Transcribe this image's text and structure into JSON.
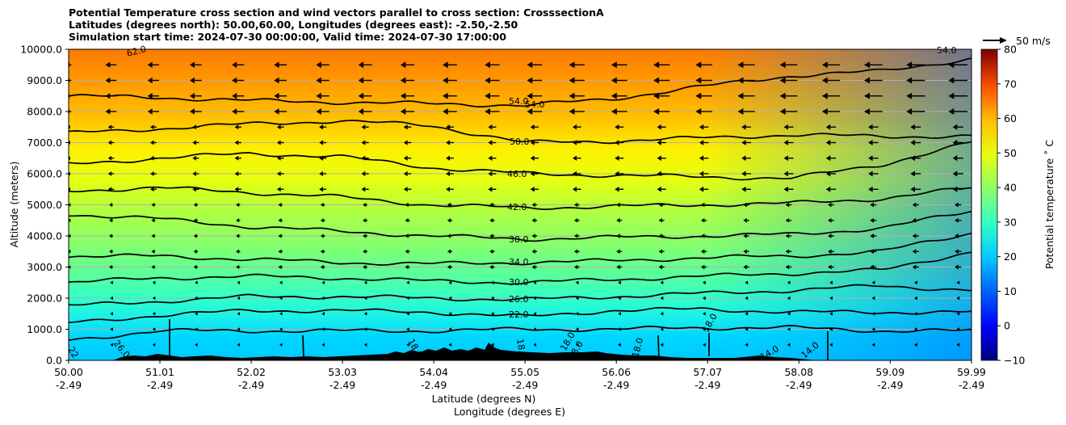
{
  "title": {
    "line1": "Potential Temperature cross section and wind vectors parallel to cross section: CrosssectionA",
    "line2": "Latitudes (degrees north): 50.00,60.00, Longitudes (degrees east): -2.50,-2.50",
    "line3": "Simulation start time: 2024-07-30 00:00:00, Valid time: 2024-07-30 17:00:00"
  },
  "chart_data": {
    "type": "contourf",
    "title": "Potential Temperature cross section and wind vectors parallel to cross section: CrosssectionA",
    "ylabel": "Altitude (meters)",
    "xlabel_1": "Latitude (degrees N)",
    "xlabel_2": "Longitude (degrees E)",
    "ylim": [
      0,
      10000
    ],
    "xlim": [
      50.0,
      59.99
    ],
    "y_ticks": [
      "0.0",
      "1000.0",
      "2000.0",
      "3000.0",
      "4000.0",
      "5000.0",
      "6000.0",
      "7000.0",
      "8000.0",
      "9000.0",
      "10000.0"
    ],
    "x_ticks": [
      {
        "lat": "50.00",
        "lon": "-2.49"
      },
      {
        "lat": "51.01",
        "lon": "-2.49"
      },
      {
        "lat": "52.02",
        "lon": "-2.49"
      },
      {
        "lat": "53.03",
        "lon": "-2.49"
      },
      {
        "lat": "54.04",
        "lon": "-2.49"
      },
      {
        "lat": "55.05",
        "lon": "-2.49"
      },
      {
        "lat": "56.06",
        "lon": "-2.49"
      },
      {
        "lat": "57.07",
        "lon": "-2.49"
      },
      {
        "lat": "58.08",
        "lon": "-2.49"
      },
      {
        "lat": "59.09",
        "lon": "-2.49"
      },
      {
        "lat": "59.99",
        "lon": "-2.49"
      }
    ],
    "grid": "horizontal",
    "colorbar": {
      "label": "Potential temperature $^\\circ$C",
      "label_display": "Potential temperature ˚ C",
      "range": [
        -10,
        80
      ],
      "ticks": [
        "−10",
        "0",
        "10",
        "20",
        "30",
        "40",
        "50",
        "60",
        "70",
        "80"
      ]
    },
    "quiver_key": {
      "label": "50 m/s"
    },
    "contour_labels": [
      {
        "value": "54.0"
      },
      {
        "value": "50.0"
      },
      {
        "value": "46.0"
      },
      {
        "value": "42.0"
      },
      {
        "value": "38.0"
      },
      {
        "value": "34.0"
      },
      {
        "value": "30.0"
      },
      {
        "value": "26.0"
      },
      {
        "value": "22.0"
      },
      {
        "value": "18.0"
      },
      {
        "value": "14.0"
      },
      {
        "value": "62.0"
      }
    ],
    "contour_label_texts": {
      "c54a": "54.0",
      "c54b": "54.0",
      "c54c": "54.0",
      "c62": "62.0",
      "c50": "50.0",
      "c46": "46.0",
      "c42": "42.0",
      "c38": "38.0",
      "c34": "34.0",
      "c30": "30.0",
      "c26": "26.0",
      "c22": "22.0",
      "c18a": "18.0",
      "c18b": "18.0",
      "c18c": "18.0",
      "c18d": "18.0",
      "c18e": "18.0",
      "c26b": "26.0",
      "c22b": "22",
      "c14a": "14.0",
      "c14b": "14.0",
      "c18f": "18.0"
    },
    "isotherms": [
      {
        "value": 54,
        "profile": [
          [
            50.0,
            8500
          ],
          [
            51.0,
            8450
          ],
          [
            52.0,
            8350
          ],
          [
            53.0,
            8300
          ],
          [
            54.0,
            8250
          ],
          [
            55.05,
            8200
          ],
          [
            56.0,
            8400
          ],
          [
            57.0,
            8800
          ],
          [
            58.0,
            9150
          ],
          [
            59.0,
            9300
          ],
          [
            59.99,
            9700
          ]
        ]
      },
      {
        "value": 50,
        "profile": [
          [
            50.0,
            7300
          ],
          [
            51.0,
            7450
          ],
          [
            52.0,
            7600
          ],
          [
            53.0,
            7700
          ],
          [
            54.0,
            7550
          ],
          [
            55.05,
            7000
          ],
          [
            56.0,
            7050
          ],
          [
            57.0,
            7150
          ],
          [
            58.0,
            7250
          ],
          [
            59.0,
            7200
          ],
          [
            59.99,
            7200
          ]
        ]
      },
      {
        "value": 46,
        "profile": [
          [
            50.0,
            6300
          ],
          [
            51.0,
            6500
          ],
          [
            52.0,
            6650
          ],
          [
            53.0,
            6550
          ],
          [
            54.0,
            6200
          ],
          [
            55.05,
            6000
          ],
          [
            56.0,
            5950
          ],
          [
            57.0,
            5900
          ],
          [
            58.0,
            5850
          ],
          [
            59.0,
            6300
          ],
          [
            59.99,
            7000
          ]
        ]
      },
      {
        "value": 42,
        "profile": [
          [
            50.0,
            5450
          ],
          [
            51.0,
            5550
          ],
          [
            52.0,
            5400
          ],
          [
            53.0,
            5250
          ],
          [
            54.0,
            5000
          ],
          [
            55.05,
            4900
          ],
          [
            56.0,
            4950
          ],
          [
            57.0,
            5000
          ],
          [
            58.0,
            5050
          ],
          [
            59.0,
            5200
          ],
          [
            59.99,
            5550
          ]
        ]
      },
      {
        "value": 38,
        "profile": [
          [
            50.0,
            4700
          ],
          [
            51.0,
            4550
          ],
          [
            52.0,
            4300
          ],
          [
            53.0,
            4150
          ],
          [
            54.0,
            4000
          ],
          [
            55.05,
            3900
          ],
          [
            56.0,
            3950
          ],
          [
            57.0,
            4000
          ],
          [
            58.0,
            4050
          ],
          [
            59.0,
            4250
          ],
          [
            59.99,
            4800
          ]
        ]
      },
      {
        "value": 34,
        "profile": [
          [
            50.0,
            3350
          ],
          [
            51.0,
            3350
          ],
          [
            52.0,
            3250
          ],
          [
            53.0,
            3150
          ],
          [
            54.0,
            3100
          ],
          [
            55.05,
            3150
          ],
          [
            56.0,
            3200
          ],
          [
            57.0,
            3300
          ],
          [
            58.0,
            3350
          ],
          [
            59.0,
            3500
          ],
          [
            59.99,
            4100
          ]
        ]
      },
      {
        "value": 30,
        "profile": [
          [
            50.0,
            2500
          ],
          [
            51.0,
            2650
          ],
          [
            52.0,
            2700
          ],
          [
            53.0,
            2650
          ],
          [
            54.0,
            2550
          ],
          [
            55.05,
            2500
          ],
          [
            56.0,
            2600
          ],
          [
            57.0,
            2700
          ],
          [
            58.0,
            2800
          ],
          [
            59.0,
            2900
          ],
          [
            59.99,
            3500
          ]
        ]
      },
      {
        "value": 26,
        "profile": [
          [
            50.0,
            1750
          ],
          [
            51.0,
            1900
          ],
          [
            52.0,
            2050
          ],
          [
            53.0,
            2050
          ],
          [
            54.0,
            2000
          ],
          [
            55.05,
            1950
          ],
          [
            56.0,
            2050
          ],
          [
            57.0,
            2150
          ],
          [
            58.0,
            2250
          ],
          [
            59.0,
            2400
          ],
          [
            59.99,
            2250
          ]
        ]
      },
      {
        "value": 22,
        "profile": [
          [
            50.0,
            1200
          ],
          [
            51.0,
            1450
          ],
          [
            52.0,
            1600
          ],
          [
            53.0,
            1600
          ],
          [
            54.0,
            1550
          ],
          [
            55.05,
            1400
          ],
          [
            56.0,
            1600
          ],
          [
            57.0,
            1650
          ],
          [
            58.0,
            1550
          ],
          [
            59.0,
            1550
          ],
          [
            59.99,
            1550
          ]
        ]
      },
      {
        "value": 18,
        "profile": [
          [
            50.0,
            650
          ],
          [
            51.0,
            950
          ],
          [
            52.0,
            950
          ],
          [
            53.0,
            950
          ],
          [
            54.0,
            950
          ],
          [
            55.05,
            1000
          ],
          [
            56.0,
            1000
          ],
          [
            57.0,
            1050
          ],
          [
            58.0,
            1050
          ],
          [
            59.0,
            950
          ],
          [
            59.99,
            950
          ]
        ]
      }
    ],
    "wind_vectors": "leftward (northerly component negative), stronger aloft (~15-20 m/s near 9500 m), weak near surface"
  }
}
